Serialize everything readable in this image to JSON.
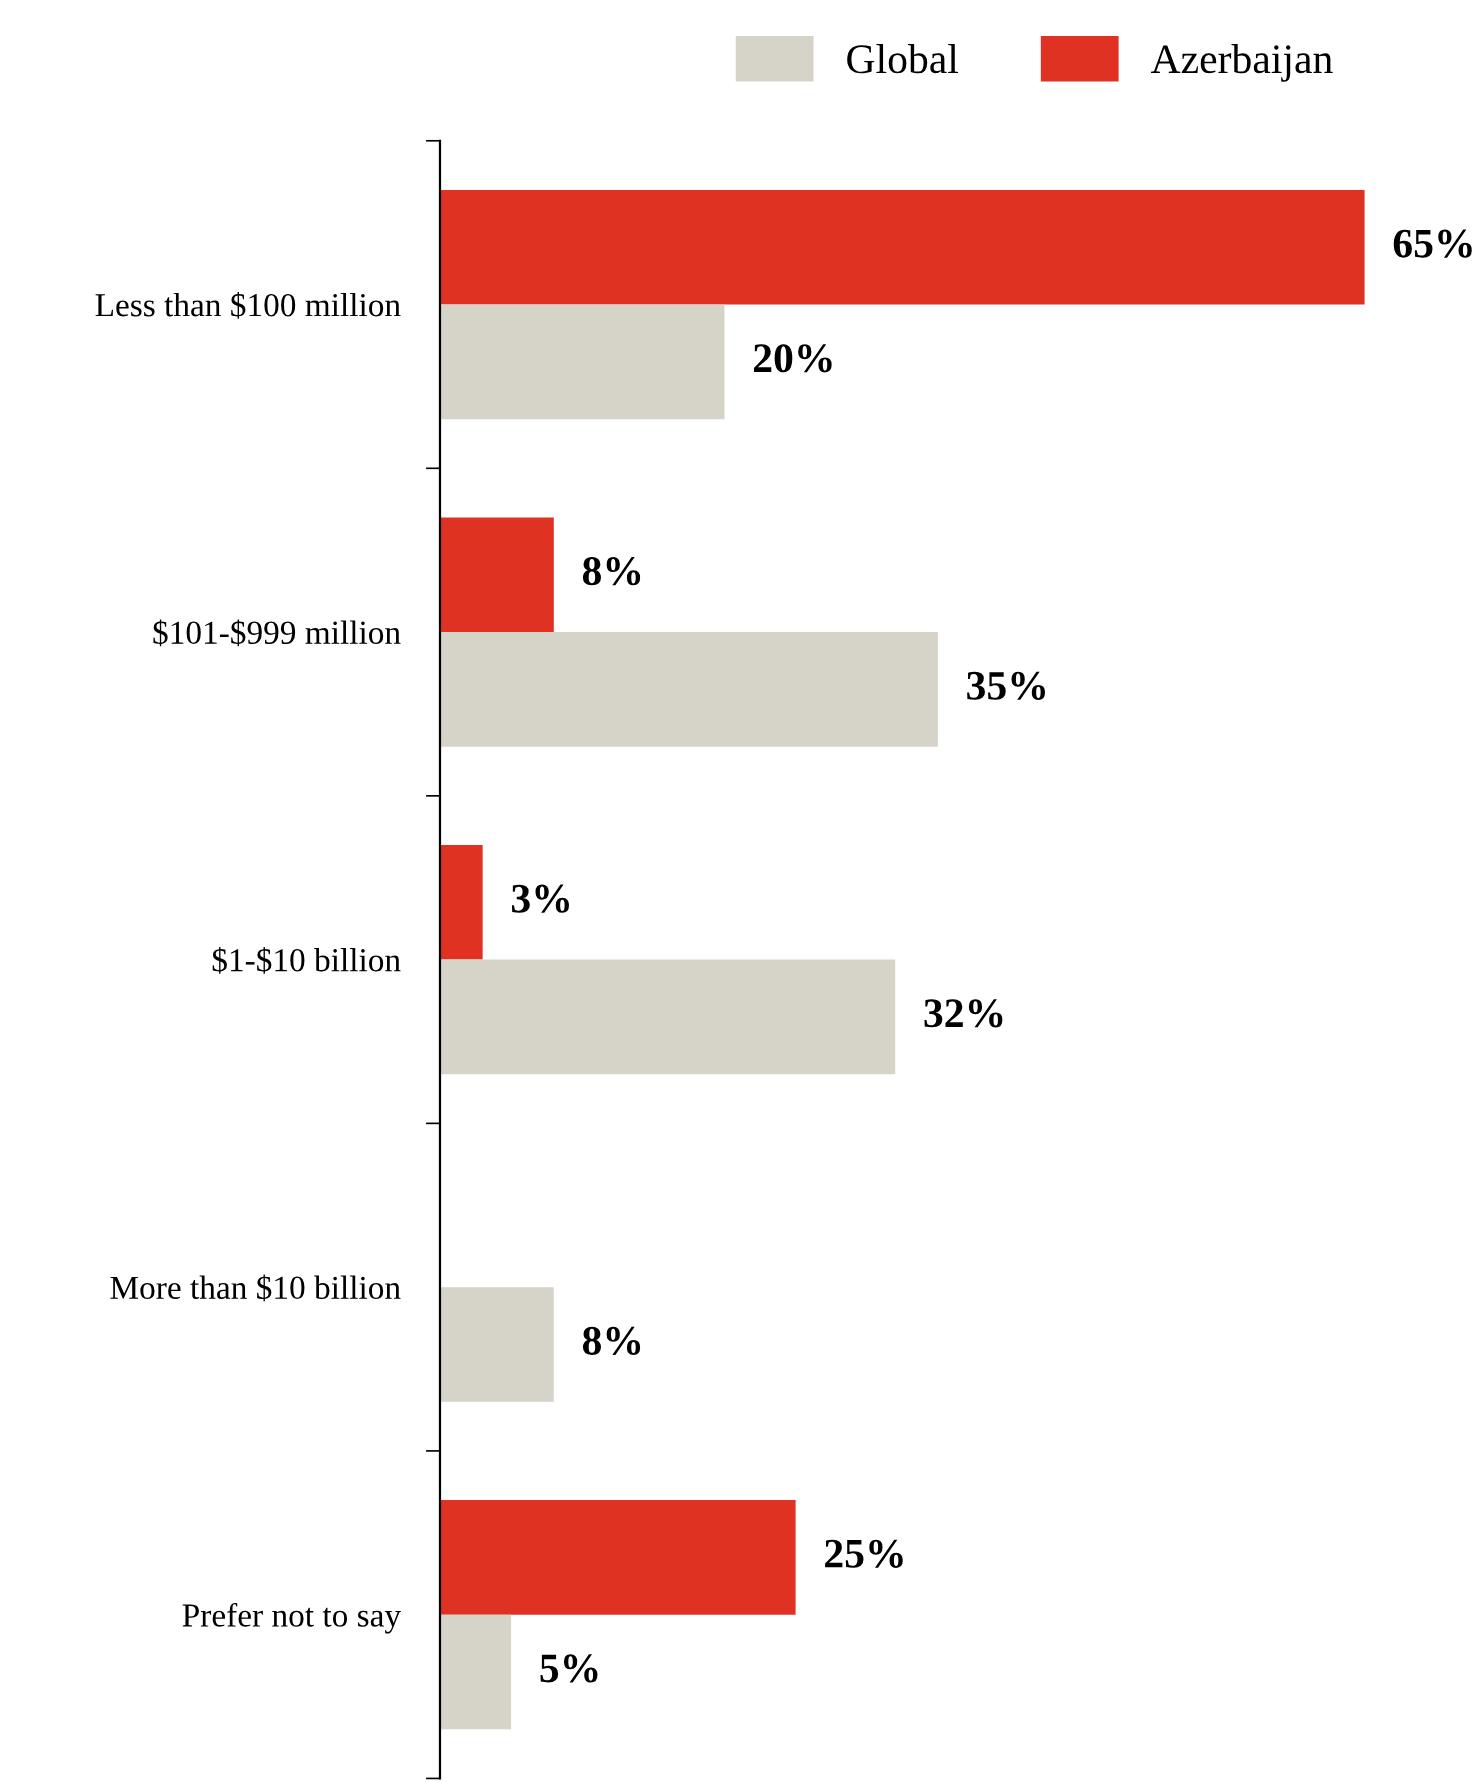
{
  "chart_data": {
    "type": "bar",
    "orientation": "horizontal",
    "categories": [
      "Less than $100 million",
      "$101-$999 million",
      "$1-$10 billion",
      "More than $10 billion",
      "Prefer not to say"
    ],
    "series": [
      {
        "name": "Azerbaijan",
        "color": "#e03222",
        "values": [
          65,
          8,
          3,
          null,
          25
        ],
        "value_labels": [
          "65%",
          "8%",
          "3%",
          null,
          "25%"
        ]
      },
      {
        "name": "Global",
        "color": "#d6d3c8",
        "values": [
          20,
          35,
          32,
          8,
          5
        ],
        "value_labels": [
          "20%",
          "35%",
          "32%",
          "8%",
          "5%"
        ]
      }
    ],
    "legend": "top right",
    "grid": false
  }
}
